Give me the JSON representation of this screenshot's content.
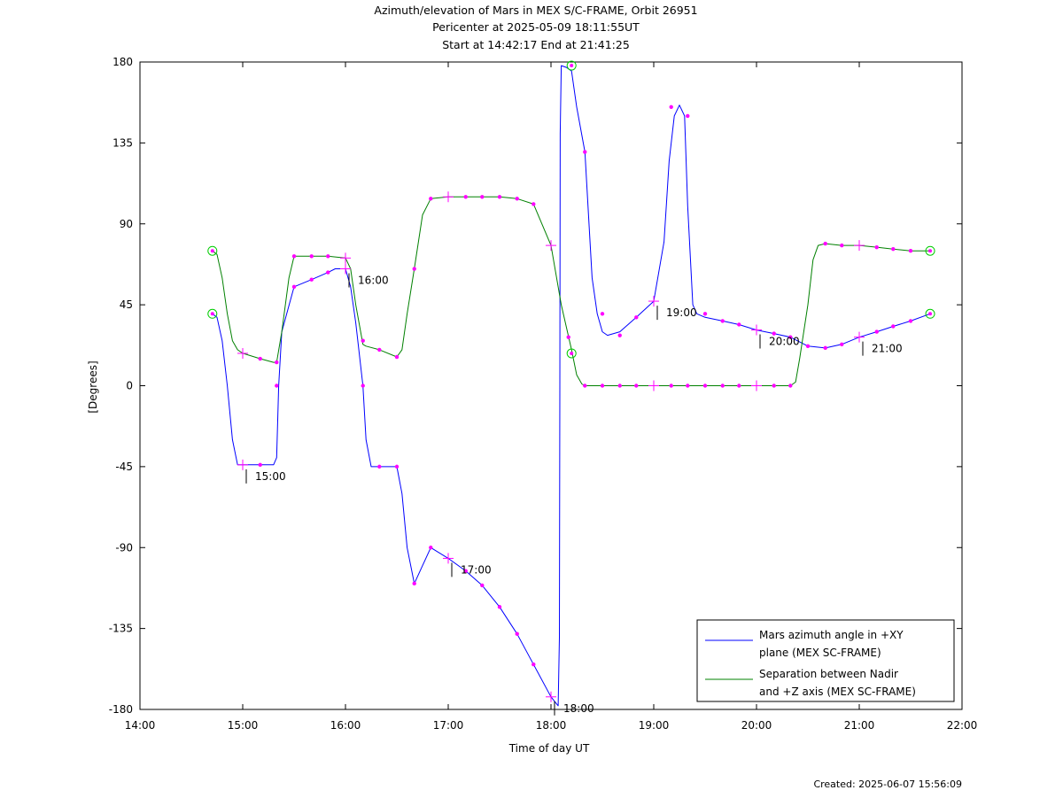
{
  "titles": [
    "Azimuth/elevation of Mars in MEX S/C-FRAME,  Orbit 26951",
    "Pericenter at 2025-05-09 18:11:55UT",
    "Start at 14:42:17 End at 21:41:25"
  ],
  "created": "Created: 2025-06-07 15:56:09",
  "colors": {
    "azimuth": "#0000ff",
    "separation": "#008000",
    "marker": "#ff00ff",
    "circle": "#00cc00"
  },
  "chart_data": {
    "type": "line",
    "title": "Azimuth/elevation of Mars in MEX S/C-FRAME,  Orbit 26951",
    "xlabel": "Time of day UT",
    "ylabel": "[Degrees]",
    "xlim": [
      14,
      22
    ],
    "ylim": [
      -180,
      180
    ],
    "x_unit": "hours",
    "x_tick_values": [
      14,
      15,
      16,
      17,
      18,
      19,
      20,
      21,
      22
    ],
    "x_tick_labels": [
      "14:00",
      "15:00",
      "16:00",
      "17:00",
      "18:00",
      "19:00",
      "20:00",
      "21:00",
      "22:00"
    ],
    "y_tick_values": [
      180,
      135,
      90,
      45,
      0,
      -45,
      -90,
      -135,
      -180
    ],
    "y_tick_labels": [
      "180",
      "135",
      "90",
      "45",
      "0",
      "-45",
      "-90",
      "-135",
      "-180"
    ],
    "grid": false,
    "legend_position": "bottom-right",
    "series": [
      {
        "name": "Mars azimuth angle in +XY plane (MEX SC-FRAME)",
        "legend_lines": [
          "Mars azimuth angle in +XY",
          "plane (MEX SC-FRAME)"
        ],
        "color": "#0000ff",
        "x": [
          14.705,
          14.75,
          14.8,
          14.85,
          14.9,
          14.95,
          15.0,
          15.05,
          15.1,
          15.2,
          15.3,
          15.33,
          15.35,
          15.38,
          15.5,
          15.67,
          15.83,
          15.9,
          16.0,
          16.05,
          16.1,
          16.17,
          16.2,
          16.25,
          16.3,
          16.5,
          16.55,
          16.6,
          16.67,
          16.75,
          16.83,
          17.0,
          17.17,
          17.33,
          17.5,
          17.67,
          17.83,
          18.0,
          18.07,
          18.082,
          18.086,
          18.09,
          18.1,
          18.15,
          18.2,
          18.25,
          18.33,
          18.4,
          18.45,
          18.5,
          18.55,
          18.67,
          18.83,
          19.0,
          19.1,
          19.15,
          19.2,
          19.25,
          19.3,
          19.33,
          19.38,
          19.42,
          19.5,
          19.67,
          19.83,
          20.0,
          20.17,
          20.33,
          20.5,
          20.67,
          20.83,
          21.0,
          21.17,
          21.33,
          21.5,
          21.69
        ],
        "y": [
          40,
          38,
          25,
          0,
          -30,
          -44,
          -44,
          -44,
          -44,
          -44,
          -44,
          -40,
          0,
          30,
          55,
          59,
          63,
          65,
          65,
          55,
          35,
          0,
          -30,
          -45,
          -45,
          -45,
          -60,
          -90,
          -110,
          -100,
          -90,
          -96,
          -103,
          -111,
          -123,
          -138,
          -155,
          -173,
          -178,
          -140,
          0,
          140,
          178,
          177,
          175,
          155,
          130,
          60,
          40,
          30,
          28,
          30,
          38,
          47,
          80,
          125,
          150,
          156,
          150,
          100,
          45,
          40,
          38,
          36,
          34,
          31,
          29,
          27,
          22,
          21,
          23,
          27,
          30,
          33,
          36,
          40
        ]
      },
      {
        "name": "Separation between Nadir and +Z axis (MEX SC-FRAME)",
        "legend_lines": [
          "Separation between Nadir",
          "and +Z axis (MEX SC-FRAME)"
        ],
        "color": "#008000",
        "x": [
          14.705,
          14.75,
          14.8,
          14.85,
          14.9,
          14.95,
          15.0,
          15.17,
          15.3,
          15.33,
          15.38,
          15.45,
          15.5,
          15.67,
          15.83,
          16.0,
          16.05,
          16.1,
          16.17,
          16.2,
          16.33,
          16.5,
          16.55,
          16.6,
          16.67,
          16.75,
          16.83,
          17.0,
          17.17,
          17.33,
          17.5,
          17.67,
          17.83,
          18.0,
          18.1,
          18.2,
          18.25,
          18.3,
          18.33,
          18.5,
          18.67,
          18.83,
          19.0,
          19.17,
          19.33,
          19.5,
          19.67,
          19.83,
          20.0,
          20.17,
          20.33,
          20.38,
          20.42,
          20.5,
          20.55,
          20.6,
          20.67,
          20.83,
          21.0,
          21.17,
          21.33,
          21.5,
          21.69
        ],
        "y": [
          75,
          73,
          60,
          40,
          25,
          20,
          18,
          15,
          13,
          13,
          30,
          60,
          72,
          72,
          72,
          71,
          65,
          45,
          23,
          22,
          20,
          16,
          20,
          40,
          65,
          95,
          104,
          105,
          105,
          105,
          105,
          104,
          101,
          78,
          45,
          20,
          6,
          1,
          0,
          0,
          0,
          0,
          0,
          0,
          0,
          0,
          0,
          0,
          0,
          0,
          0,
          2,
          15,
          45,
          70,
          78,
          79,
          78,
          78,
          77,
          76,
          75,
          75
        ]
      }
    ],
    "hour_crosses": [
      {
        "x": 15.0,
        "y": -44,
        "label": "15:00"
      },
      {
        "x": 15.0,
        "y": 18
      },
      {
        "x": 16.0,
        "y": 65,
        "label": "16:00"
      },
      {
        "x": 16.0,
        "y": 71
      },
      {
        "x": 17.0,
        "y": -96,
        "label": "17:00"
      },
      {
        "x": 17.0,
        "y": 105
      },
      {
        "x": 18.0,
        "y": -173,
        "label": "18:00"
      },
      {
        "x": 18.0,
        "y": 78
      },
      {
        "x": 19.0,
        "y": 47,
        "label": "19:00"
      },
      {
        "x": 19.0,
        "y": 0
      },
      {
        "x": 20.0,
        "y": 31,
        "label": "20:00"
      },
      {
        "x": 20.0,
        "y": 0
      },
      {
        "x": 21.0,
        "y": 27,
        "label": "21:00"
      },
      {
        "x": 21.0,
        "y": 78
      }
    ],
    "minute_markers": [
      {
        "x": 15.17,
        "y": -44
      },
      {
        "x": 15.33,
        "y": 0
      },
      {
        "x": 15.5,
        "y": 55
      },
      {
        "x": 15.67,
        "y": 59
      },
      {
        "x": 15.83,
        "y": 63
      },
      {
        "x": 16.17,
        "y": 0
      },
      {
        "x": 16.33,
        "y": -45
      },
      {
        "x": 16.5,
        "y": -45
      },
      {
        "x": 16.67,
        "y": -110
      },
      {
        "x": 16.83,
        "y": -90
      },
      {
        "x": 17.17,
        "y": -103
      },
      {
        "x": 17.33,
        "y": -111
      },
      {
        "x": 17.5,
        "y": -123
      },
      {
        "x": 17.67,
        "y": -138
      },
      {
        "x": 17.83,
        "y": -155
      },
      {
        "x": 18.33,
        "y": 130
      },
      {
        "x": 18.5,
        "y": 40
      },
      {
        "x": 18.67,
        "y": 28
      },
      {
        "x": 18.83,
        "y": 38
      },
      {
        "x": 19.17,
        "y": 155
      },
      {
        "x": 19.33,
        "y": 150
      },
      {
        "x": 19.5,
        "y": 40
      },
      {
        "x": 19.67,
        "y": 36
      },
      {
        "x": 19.83,
        "y": 34
      },
      {
        "x": 20.17,
        "y": 29
      },
      {
        "x": 20.33,
        "y": 27
      },
      {
        "x": 20.5,
        "y": 22
      },
      {
        "x": 20.67,
        "y": 21
      },
      {
        "x": 20.83,
        "y": 23
      },
      {
        "x": 21.17,
        "y": 30
      },
      {
        "x": 21.33,
        "y": 33
      },
      {
        "x": 21.5,
        "y": 36
      },
      {
        "x": 15.17,
        "y": 15
      },
      {
        "x": 15.33,
        "y": 13
      },
      {
        "x": 15.5,
        "y": 72
      },
      {
        "x": 15.67,
        "y": 72
      },
      {
        "x": 15.83,
        "y": 72
      },
      {
        "x": 16.17,
        "y": 25
      },
      {
        "x": 16.33,
        "y": 20
      },
      {
        "x": 16.5,
        "y": 16
      },
      {
        "x": 16.67,
        "y": 65
      },
      {
        "x": 16.83,
        "y": 104
      },
      {
        "x": 17.17,
        "y": 105
      },
      {
        "x": 17.33,
        "y": 105
      },
      {
        "x": 17.5,
        "y": 105
      },
      {
        "x": 17.67,
        "y": 104
      },
      {
        "x": 17.83,
        "y": 101
      },
      {
        "x": 18.17,
        "y": 27
      },
      {
        "x": 18.33,
        "y": 0
      },
      {
        "x": 18.5,
        "y": 0
      },
      {
        "x": 18.67,
        "y": 0
      },
      {
        "x": 18.83,
        "y": 0
      },
      {
        "x": 19.17,
        "y": 0
      },
      {
        "x": 19.33,
        "y": 0
      },
      {
        "x": 19.5,
        "y": 0
      },
      {
        "x": 19.67,
        "y": 0
      },
      {
        "x": 19.83,
        "y": 0
      },
      {
        "x": 20.17,
        "y": 0
      },
      {
        "x": 20.33,
        "y": 0
      },
      {
        "x": 20.67,
        "y": 79
      },
      {
        "x": 20.83,
        "y": 78
      },
      {
        "x": 21.17,
        "y": 77
      },
      {
        "x": 21.33,
        "y": 76
      },
      {
        "x": 21.5,
        "y": 75
      }
    ],
    "endpoint_circles": [
      {
        "x": 14.705,
        "y": 75
      },
      {
        "x": 14.705,
        "y": 40
      },
      {
        "x": 21.69,
        "y": 75
      },
      {
        "x": 21.69,
        "y": 40
      },
      {
        "x": 18.2,
        "y": 178
      },
      {
        "x": 18.2,
        "y": 18
      }
    ]
  }
}
